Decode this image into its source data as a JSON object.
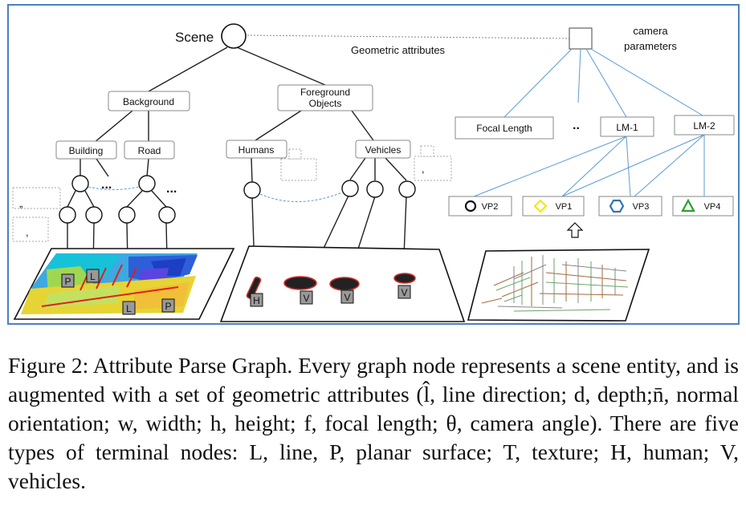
{
  "figure": {
    "scene_label": "Scene",
    "geometric_attributes_label": "Geometric attributes",
    "camera_label_line1": "camera",
    "camera_label_line2": "parameters",
    "background": "Background",
    "foreground_line1": "Foreground",
    "foreground_line2": "Objects",
    "building": "Building",
    "road": "Road",
    "humans": "Humans",
    "vehicles": "Vehicles",
    "focal_length": "Focal Length",
    "lm1": "LM-1",
    "lm2": "LM-2",
    "vp2": "VP2",
    "vp1": "VP1",
    "vp3": "VP3",
    "vp4": "VP4",
    "dots": "...",
    "dots2": "..",
    "terminal_p": "P",
    "terminal_l": "L",
    "terminal_h": "H",
    "terminal_v": "V",
    "attr_comma": ",",
    "attr_quote": "„",
    "colors": {
      "frame": "#4f7fbf",
      "line_blue": "#5b9bd5",
      "vp1_marker": "#f2e600",
      "vp3_marker": "#2e75b6",
      "vp4_marker": "#2ca02c",
      "red_lines": "#e0201a"
    }
  },
  "caption": {
    "text": "Figure 2: Attribute Parse Graph. Every graph node represents a scene entity, and is augmented with a set of geometric attributes (l̂, line direction; d, depth;n̄, normal orientation; w, width; h, height; f, focal length; θ, camera angle). There are five types of terminal nodes: L, line, P, planar surface; T, texture; H, human; V, vehicles."
  }
}
